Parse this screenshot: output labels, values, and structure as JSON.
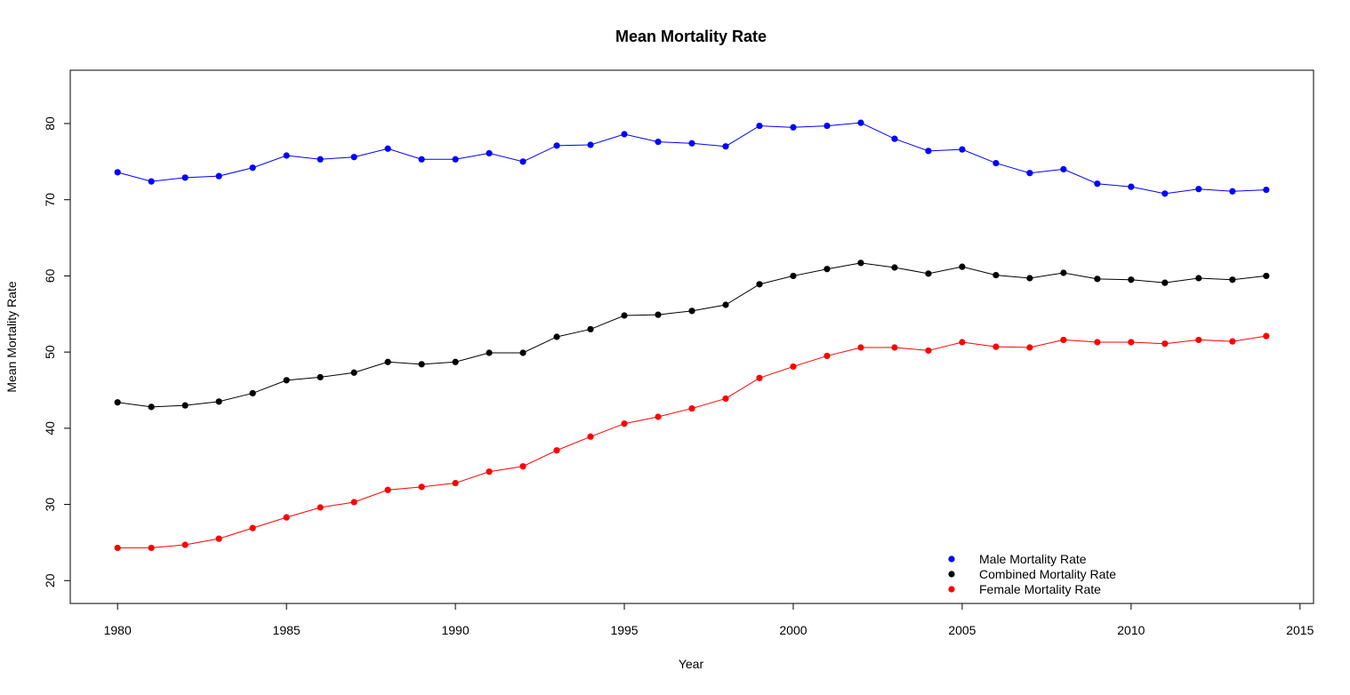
{
  "chart_data": {
    "type": "line",
    "title": "Mean Mortality Rate",
    "xlabel": "Year",
    "ylabel": "Mean Mortality Rate",
    "xlim": [
      1978.6,
      2015.4
    ],
    "ylim": [
      17.0,
      87.0
    ],
    "x_ticks": [
      1980,
      1985,
      1990,
      1995,
      2000,
      2005,
      2010,
      2015
    ],
    "y_ticks": [
      20,
      30,
      40,
      50,
      60,
      70,
      80
    ],
    "grid": false,
    "legend_position": "bottom-right",
    "x": [
      1980,
      1981,
      1982,
      1983,
      1984,
      1985,
      1986,
      1987,
      1988,
      1989,
      1990,
      1991,
      1992,
      1993,
      1994,
      1995,
      1996,
      1997,
      1998,
      1999,
      2000,
      2001,
      2002,
      2003,
      2004,
      2005,
      2006,
      2007,
      2008,
      2009,
      2010,
      2011,
      2012,
      2013,
      2014
    ],
    "series": [
      {
        "name": "Male Mortality Rate",
        "color": "#0000ff",
        "values": [
          73.6,
          72.4,
          72.9,
          73.1,
          74.2,
          75.8,
          75.3,
          75.6,
          76.7,
          75.3,
          75.3,
          76.1,
          75.0,
          77.1,
          77.2,
          78.6,
          77.6,
          77.4,
          77.0,
          79.7,
          79.5,
          79.7,
          80.1,
          78.0,
          76.4,
          76.6,
          74.8,
          73.5,
          74.0,
          72.1,
          71.7,
          70.8,
          71.4,
          71.1,
          71.3
        ]
      },
      {
        "name": "Combined Mortality Rate",
        "color": "#000000",
        "values": [
          43.4,
          42.8,
          43.0,
          43.5,
          44.6,
          46.3,
          46.7,
          47.3,
          48.7,
          48.4,
          48.7,
          49.9,
          49.9,
          52.0,
          53.0,
          54.8,
          54.9,
          55.4,
          56.2,
          58.9,
          60.0,
          60.9,
          61.7,
          61.1,
          60.3,
          61.2,
          60.1,
          59.7,
          60.4,
          59.6,
          59.5,
          59.1,
          59.7,
          59.5,
          60.0
        ]
      },
      {
        "name": "Female Mortality Rate",
        "color": "#ff0000",
        "values": [
          24.3,
          24.3,
          24.7,
          25.5,
          26.9,
          28.3,
          29.6,
          30.3,
          31.9,
          32.3,
          32.8,
          34.3,
          35.0,
          37.1,
          38.9,
          40.6,
          41.5,
          42.6,
          43.9,
          46.6,
          48.1,
          49.5,
          50.6,
          50.6,
          50.2,
          51.3,
          50.7,
          50.6,
          51.6,
          51.3,
          51.3,
          51.1,
          51.6,
          51.4,
          52.1
        ]
      }
    ],
    "legend_order": [
      "Male Mortality Rate",
      "Combined Mortality Rate",
      "Female Mortality Rate"
    ]
  }
}
